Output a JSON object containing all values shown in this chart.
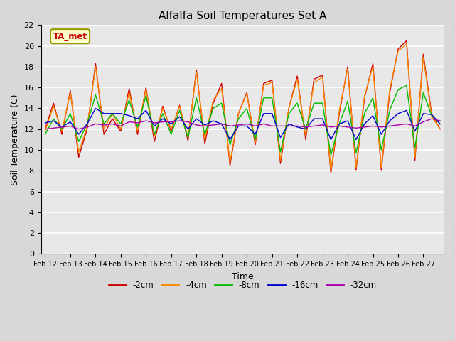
{
  "title": "Alfalfa Soil Temperatures Set A",
  "xlabel": "Time",
  "ylabel": "Soil Temperature (C)",
  "ylim": [
    0,
    22
  ],
  "yticks": [
    0,
    2,
    4,
    6,
    8,
    10,
    12,
    14,
    16,
    18,
    20,
    22
  ],
  "fig_bg": "#d8d8d8",
  "plot_bg": "#e8e8e8",
  "grid_color": "#ffffff",
  "series_colors": {
    "-2cm": "#cc0000",
    "-4cm": "#ff8800",
    "-8cm": "#00bb00",
    "-16cm": "#0000cc",
    "-32cm": "#aa00aa"
  },
  "legend_label": "TA_met",
  "legend_box_color": "#ffffcc",
  "legend_box_edge": "#999900",
  "num_days": 16,
  "points_per_day": 3,
  "x_tick_labels": [
    "Feb 12",
    "Feb 13",
    "Feb 14",
    "Feb 15",
    "Feb 16",
    "Feb 17",
    "Feb 18",
    "Feb 19",
    "Feb 20",
    "Feb 21",
    "Feb 22",
    "Feb 23",
    "Feb 24",
    "Feb 25",
    "Feb 26",
    "Feb 27"
  ],
  "data": {
    "-2cm": [
      12.0,
      14.5,
      11.5,
      15.7,
      9.3,
      12.0,
      18.3,
      11.5,
      13.0,
      11.8,
      15.9,
      11.5,
      16.0,
      10.8,
      14.2,
      11.8,
      14.3,
      10.9,
      17.7,
      10.6,
      14.5,
      16.4,
      8.5,
      13.5,
      15.5,
      10.5,
      16.4,
      16.7,
      8.7,
      14.0,
      17.1,
      11.0,
      16.8,
      17.2,
      7.8,
      13.5,
      18.0,
      8.1,
      15.0,
      18.3,
      8.1,
      15.5,
      19.7,
      20.5,
      9.0,
      19.2,
      13.4,
      12.0
    ],
    "-4cm": [
      11.8,
      14.2,
      11.8,
      15.5,
      9.8,
      12.2,
      18.0,
      12.0,
      13.5,
      12.0,
      15.5,
      11.8,
      15.8,
      11.3,
      14.0,
      12.0,
      14.2,
      11.2,
      17.5,
      11.0,
      14.8,
      15.9,
      8.8,
      13.5,
      15.4,
      10.7,
      16.2,
      16.5,
      9.0,
      14.0,
      16.8,
      11.3,
      16.5,
      17.0,
      8.0,
      13.8,
      17.8,
      8.3,
      15.2,
      18.0,
      8.3,
      15.8,
      19.5,
      20.2,
      9.3,
      18.9,
      13.2,
      12.0
    ],
    "-8cm": [
      11.5,
      13.0,
      12.0,
      13.5,
      10.8,
      12.5,
      15.3,
      12.5,
      13.5,
      12.5,
      14.8,
      12.2,
      15.2,
      11.5,
      13.5,
      11.5,
      13.8,
      11.2,
      15.0,
      11.5,
      14.0,
      14.5,
      10.5,
      13.0,
      14.0,
      11.0,
      15.0,
      15.0,
      9.8,
      13.5,
      14.5,
      12.0,
      14.5,
      14.5,
      9.5,
      12.5,
      14.7,
      9.7,
      13.5,
      15.0,
      10.0,
      13.8,
      15.8,
      16.2,
      10.2,
      15.5,
      13.3,
      12.5
    ],
    "-16cm": [
      12.6,
      12.8,
      12.2,
      12.7,
      11.5,
      12.5,
      14.0,
      13.5,
      13.5,
      13.5,
      13.3,
      13.0,
      13.8,
      12.3,
      13.0,
      12.5,
      13.2,
      12.0,
      13.0,
      12.4,
      12.8,
      12.5,
      11.0,
      12.3,
      12.3,
      11.5,
      13.5,
      13.5,
      11.2,
      12.5,
      12.2,
      12.0,
      13.0,
      13.0,
      11.0,
      12.5,
      12.8,
      11.0,
      12.5,
      13.3,
      11.5,
      12.8,
      13.5,
      13.8,
      11.8,
      13.5,
      13.4,
      12.5
    ],
    "-32cm": [
      12.0,
      12.1,
      12.2,
      12.3,
      12.0,
      12.2,
      12.5,
      12.4,
      12.5,
      12.3,
      12.7,
      12.6,
      12.8,
      12.6,
      12.7,
      12.7,
      12.8,
      12.7,
      12.4,
      12.3,
      12.4,
      12.5,
      12.3,
      12.4,
      12.5,
      12.3,
      12.5,
      12.3,
      12.3,
      12.3,
      12.3,
      12.2,
      12.3,
      12.4,
      12.2,
      12.3,
      12.2,
      12.1,
      12.2,
      12.3,
      12.2,
      12.3,
      12.4,
      12.5,
      12.3,
      12.7,
      13.0,
      12.8
    ]
  }
}
